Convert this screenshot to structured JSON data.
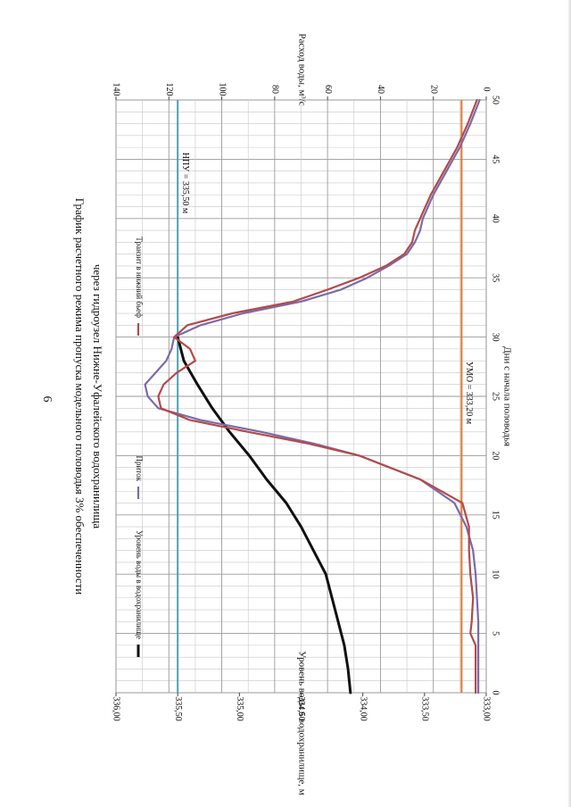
{
  "page": {
    "number": "6"
  },
  "chart_data": {
    "type": "line",
    "title": "График расчетного режима пропуска модельного половодья 3% обеспеченности",
    "subtitle": "через гидроузел Нижне-Уфалейского водохранилища",
    "xlabel": "Дни с начала половодья",
    "y_left_label": "Уровень воды в водохранилище, м",
    "y_right_label": "Расход воды, м³/с",
    "xlim": [
      0,
      50
    ],
    "x_ticks": [
      "0",
      "5",
      "10",
      "15",
      "20",
      "25",
      "30",
      "35",
      "40",
      "45",
      "50"
    ],
    "y_left_lim": [
      333.0,
      336.0
    ],
    "y_left_ticks": [
      "333,00",
      "333,50",
      "334,00",
      "334,50",
      "335,00",
      "335,50",
      "336,00"
    ],
    "y_right_lim": [
      0,
      140
    ],
    "y_right_ticks": [
      "0",
      "20",
      "40",
      "60",
      "80",
      "100",
      "120",
      "140"
    ],
    "grid": true,
    "legend": [
      {
        "name": "Уровень воды в водохранилище",
        "color": "#111111"
      },
      {
        "name": "Приток",
        "color": "#7b6aa8"
      },
      {
        "name": "Транзит в нижний бьеф",
        "color": "#b34a4a"
      }
    ],
    "reference_lines": [
      {
        "label": "НПУ = 335,50 м",
        "level": 335.5,
        "axis": "left",
        "color": "#4aa3b5"
      },
      {
        "label": "УМО = 333,20 м",
        "level": 333.2,
        "axis": "left",
        "color": "#e0772e"
      }
    ],
    "series": [
      {
        "name": "Уровень воды в водохранилище",
        "axis": "left",
        "color": "#111111",
        "x": [
          0,
          2,
          4,
          6,
          8,
          10,
          12,
          14,
          16,
          18,
          20,
          22,
          24,
          26,
          28,
          30
        ],
        "values": [
          334.1,
          334.12,
          334.15,
          334.2,
          334.25,
          334.3,
          334.4,
          334.5,
          334.62,
          334.78,
          334.92,
          335.08,
          335.22,
          335.34,
          335.45,
          335.5
        ]
      },
      {
        "name": "Приток",
        "axis": "right",
        "color": "#7b6aa8",
        "x": [
          0,
          2,
          4,
          6,
          8,
          10,
          12,
          14,
          16,
          18,
          20,
          21,
          22,
          23,
          24,
          25,
          26,
          27,
          28,
          29,
          30,
          31,
          32,
          33,
          34,
          35,
          36,
          37,
          38,
          39,
          40,
          42,
          44,
          46,
          48,
          50
        ],
        "values": [
          3,
          3,
          3,
          3,
          3.5,
          4,
          5,
          7.5,
          12,
          25,
          48,
          65,
          85,
          108,
          124,
          128,
          129,
          125,
          121,
          119,
          118,
          108,
          92,
          70,
          55,
          45,
          37,
          30,
          27,
          25,
          24,
          20,
          15,
          10,
          6,
          2.5
        ]
      },
      {
        "name": "Транзит в нижний бьеф",
        "axis": "right",
        "color": "#b34a4a",
        "x": [
          0,
          2,
          3,
          4,
          5,
          6,
          8,
          10,
          12,
          14,
          16,
          18,
          20,
          21,
          22,
          23,
          24,
          25,
          26,
          27,
          28,
          29,
          30,
          31,
          32,
          33,
          34,
          35,
          36,
          37,
          38,
          39,
          40,
          42,
          44,
          46,
          48,
          50
        ],
        "values": [
          4,
          4,
          4,
          4,
          6,
          5.5,
          5,
          6,
          6.5,
          6.5,
          9,
          25,
          48,
          67,
          90,
          112,
          123,
          124,
          122,
          117,
          110,
          112,
          118,
          113,
          96,
          73,
          60,
          48,
          38,
          31,
          28,
          27,
          25,
          21,
          16,
          11,
          7,
          3.5
        ]
      }
    ]
  }
}
